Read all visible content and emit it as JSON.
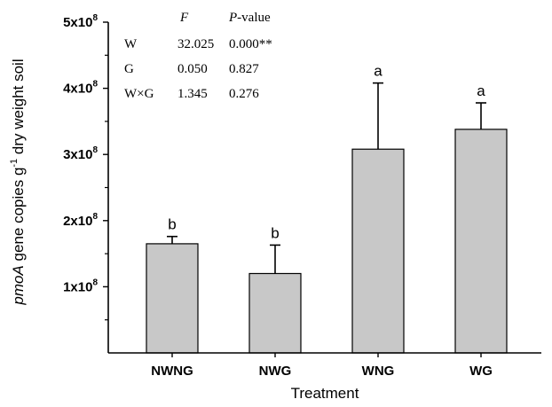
{
  "chart_data": {
    "type": "bar",
    "categories": [
      "NWNG",
      "NWG",
      "WNG",
      "WG"
    ],
    "values": [
      165000000,
      120000000,
      308000000,
      338000000
    ],
    "errors": [
      11000000,
      43000000,
      100000000,
      40000000
    ],
    "significance_letters": [
      "b",
      "b",
      "a",
      "a"
    ],
    "title": "",
    "xlabel": "Treatment",
    "ylabel": {
      "italic": "pmoA",
      "text_before_exp": " gene copies g",
      "exponent": "-1",
      "text_after_exp": " dry weight soil"
    },
    "ylim": [
      0,
      500000000
    ],
    "y_ticks": [
      {
        "value": 100000000,
        "base": "1x10",
        "exp": "8"
      },
      {
        "value": 200000000,
        "base": "2x10",
        "exp": "8"
      },
      {
        "value": 300000000,
        "base": "3x10",
        "exp": "8"
      },
      {
        "value": 400000000,
        "base": "4x10",
        "exp": "8"
      },
      {
        "value": 500000000,
        "base": "5x10",
        "exp": "8"
      }
    ],
    "bar_color": "#c8c8c8",
    "grid": false,
    "legend": "none",
    "stats_table": {
      "header": {
        "f": "F",
        "p_italic": "P",
        "p_rest": "-value"
      },
      "rows": [
        {
          "factor": "W",
          "f": "32.025",
          "p": "0.000**"
        },
        {
          "factor": "G",
          "f": "0.050",
          "p": "0.827"
        },
        {
          "factor": "W×G",
          "f": "1.345",
          "p": "0.276"
        }
      ]
    }
  }
}
